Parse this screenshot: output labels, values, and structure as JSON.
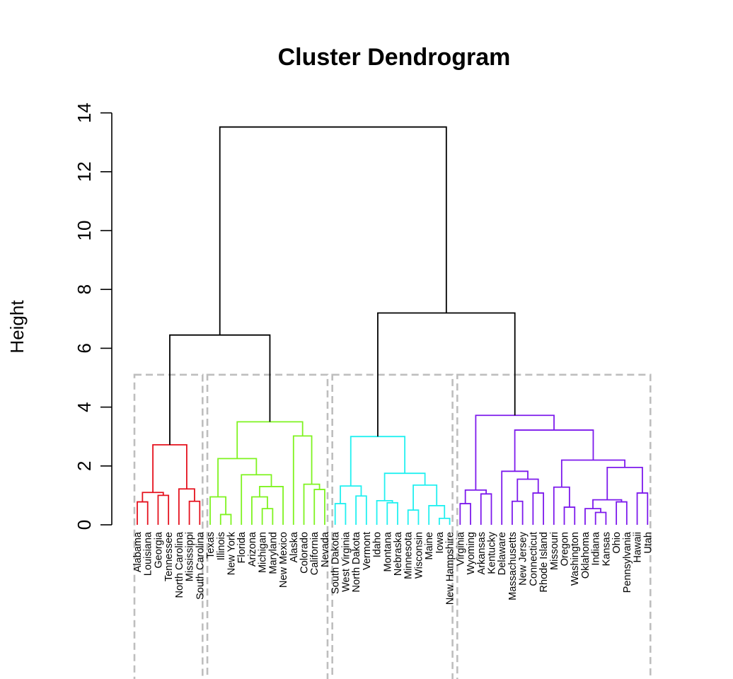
{
  "chart_data": {
    "type": "dendrogram",
    "title": "Cluster Dendrogram",
    "ylabel": "Height",
    "ylim": [
      0,
      14
    ],
    "yticks": [
      0,
      2,
      4,
      6,
      8,
      10,
      12,
      14
    ],
    "leaves": [
      "Alabama",
      "Louisiana",
      "Georgia",
      "Tennessee",
      "North Carolina",
      "Mississippi",
      "South Carolina",
      "Texas",
      "Illinois",
      "New York",
      "Florida",
      "Arizona",
      "Michigan",
      "Maryland",
      "New Mexico",
      "Alaska",
      "Colorado",
      "California",
      "Nevada",
      "South Dakota",
      "West Virginia",
      "North Dakota",
      "Vermont",
      "Idaho",
      "Montana",
      "Nebraska",
      "Minnesota",
      "Wisconsin",
      "Maine",
      "Iowa",
      "New Hampshire",
      "Virginia",
      "Wyoming",
      "Arkansas",
      "Kentucky",
      "Delaware",
      "Massachusetts",
      "New Jersey",
      "Connecticut",
      "Rhode Island",
      "Missouri",
      "Oregon",
      "Washington",
      "Oklahoma",
      "Indiana",
      "Kansas",
      "Ohio",
      "Pennsylvania",
      "Hawaii",
      "Utah"
    ],
    "clusters": [
      {
        "color": "#e5121e",
        "leaves": [
          0,
          6
        ]
      },
      {
        "color": "#7ff320",
        "leaves": [
          7,
          18
        ]
      },
      {
        "color": "#22f0f0",
        "leaves": [
          19,
          30
        ]
      },
      {
        "color": "#7d1aec",
        "leaves": [
          31,
          49
        ]
      }
    ],
    "cut_height": 5.1,
    "cut_box_color": "#bebebe",
    "merges": [
      {
        "l": "0",
        "r": "1",
        "h": 0.78,
        "c": 0
      },
      {
        "l": "2",
        "r": "3",
        "h": 1.0,
        "c": 0
      },
      {
        "l": "m0",
        "r": "m1",
        "h": 1.1,
        "c": 0
      },
      {
        "l": "5",
        "r": "6",
        "h": 0.8,
        "c": 0
      },
      {
        "l": "4",
        "r": "m3",
        "h": 1.22,
        "c": 0
      },
      {
        "l": "m2",
        "r": "m4",
        "h": 2.72,
        "c": 0
      },
      {
        "l": "8",
        "r": "9",
        "h": 0.35,
        "c": 1
      },
      {
        "l": "7",
        "r": "m6",
        "h": 0.95,
        "c": 1
      },
      {
        "l": "12",
        "r": "13",
        "h": 0.55,
        "c": 1
      },
      {
        "l": "11",
        "r": "m8",
        "h": 0.95,
        "c": 1
      },
      {
        "l": "m9",
        "r": "14",
        "h": 1.3,
        "c": 1
      },
      {
        "l": "10",
        "r": "m10",
        "h": 1.7,
        "c": 1
      },
      {
        "l": "m7",
        "r": "m11",
        "h": 2.25,
        "c": 1
      },
      {
        "l": "17",
        "r": "18",
        "h": 1.2,
        "c": 1
      },
      {
        "l": "16",
        "r": "m13",
        "h": 1.38,
        "c": 1
      },
      {
        "l": "15",
        "r": "m14",
        "h": 3.02,
        "c": 1
      },
      {
        "l": "m12",
        "r": "m15",
        "h": 3.5,
        "c": 1
      },
      {
        "l": "m5",
        "r": "m16",
        "h": 6.45,
        "c": -1
      },
      {
        "l": "19",
        "r": "20",
        "h": 0.72,
        "c": 2
      },
      {
        "l": "21",
        "r": "22",
        "h": 0.98,
        "c": 2
      },
      {
        "l": "m18",
        "r": "m19",
        "h": 1.32,
        "c": 2
      },
      {
        "l": "24",
        "r": "25",
        "h": 0.75,
        "c": 2
      },
      {
        "l": "23",
        "r": "m21",
        "h": 0.82,
        "c": 2
      },
      {
        "l": "26",
        "r": "27",
        "h": 0.5,
        "c": 2
      },
      {
        "l": "29",
        "r": "30",
        "h": 0.22,
        "c": 2
      },
      {
        "l": "28",
        "r": "m24",
        "h": 0.65,
        "c": 2
      },
      {
        "l": "m23",
        "r": "m25",
        "h": 1.35,
        "c": 2
      },
      {
        "l": "m22",
        "r": "m26",
        "h": 1.75,
        "c": 2
      },
      {
        "l": "m20",
        "r": "m27",
        "h": 3.0,
        "c": 2
      },
      {
        "l": "31",
        "r": "32",
        "h": 0.72,
        "c": 3
      },
      {
        "l": "33",
        "r": "34",
        "h": 1.05,
        "c": 3
      },
      {
        "l": "m29",
        "r": "m30",
        "h": 1.18,
        "c": 3
      },
      {
        "l": "36",
        "r": "37",
        "h": 0.8,
        "c": 3
      },
      {
        "l": "38",
        "r": "39",
        "h": 1.08,
        "c": 3
      },
      {
        "l": "m32",
        "r": "m33",
        "h": 1.55,
        "c": 3
      },
      {
        "l": "35",
        "r": "m34",
        "h": 1.82,
        "c": 3
      },
      {
        "l": "41",
        "r": "42",
        "h": 0.6,
        "c": 3
      },
      {
        "l": "40",
        "r": "m36",
        "h": 1.28,
        "c": 3
      },
      {
        "l": "44",
        "r": "45",
        "h": 0.42,
        "c": 3
      },
      {
        "l": "43",
        "r": "m38",
        "h": 0.55,
        "c": 3
      },
      {
        "l": "46",
        "r": "47",
        "h": 0.78,
        "c": 3
      },
      {
        "l": "m39",
        "r": "m40",
        "h": 0.85,
        "c": 3
      },
      {
        "l": "48",
        "r": "49",
        "h": 1.08,
        "c": 3
      },
      {
        "l": "m41",
        "r": "m42",
        "h": 1.95,
        "c": 3
      },
      {
        "l": "m37",
        "r": "m43",
        "h": 2.2,
        "c": 3
      },
      {
        "l": "m35",
        "r": "m44",
        "h": 3.22,
        "c": 3
      },
      {
        "l": "m31",
        "r": "m45",
        "h": 3.72,
        "c": 3
      },
      {
        "l": "m28",
        "r": "m46",
        "h": 7.2,
        "c": -1
      },
      {
        "l": "m17",
        "r": "m47",
        "h": 13.52,
        "c": -1
      }
    ]
  }
}
